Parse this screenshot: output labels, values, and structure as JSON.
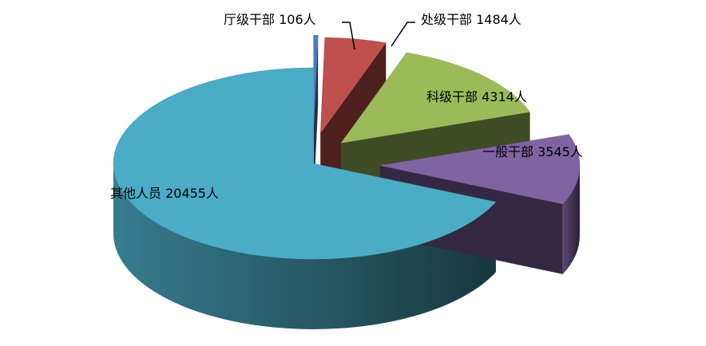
{
  "chart_data": {
    "type": "pie",
    "style": "3d-exploded",
    "unit": "人",
    "legend": "none",
    "slices": [
      {
        "label": "厅级干部",
        "value": 106,
        "text": "厅级干部 106人",
        "color": "#4a7ebb"
      },
      {
        "label": "处级干部",
        "value": 1484,
        "text": "处级干部 1484人",
        "color": "#c0504d"
      },
      {
        "label": "科级干部",
        "value": 4314,
        "text": "科级干部 4314人",
        "color": "#9bbb59"
      },
      {
        "label": "一般干部",
        "value": 3545,
        "text": "一般干部 3545人",
        "color": "#8064a2"
      },
      {
        "label": "其他人员",
        "value": 20455,
        "text": "其他人员 20455人",
        "color": "#4bacc6"
      }
    ]
  }
}
